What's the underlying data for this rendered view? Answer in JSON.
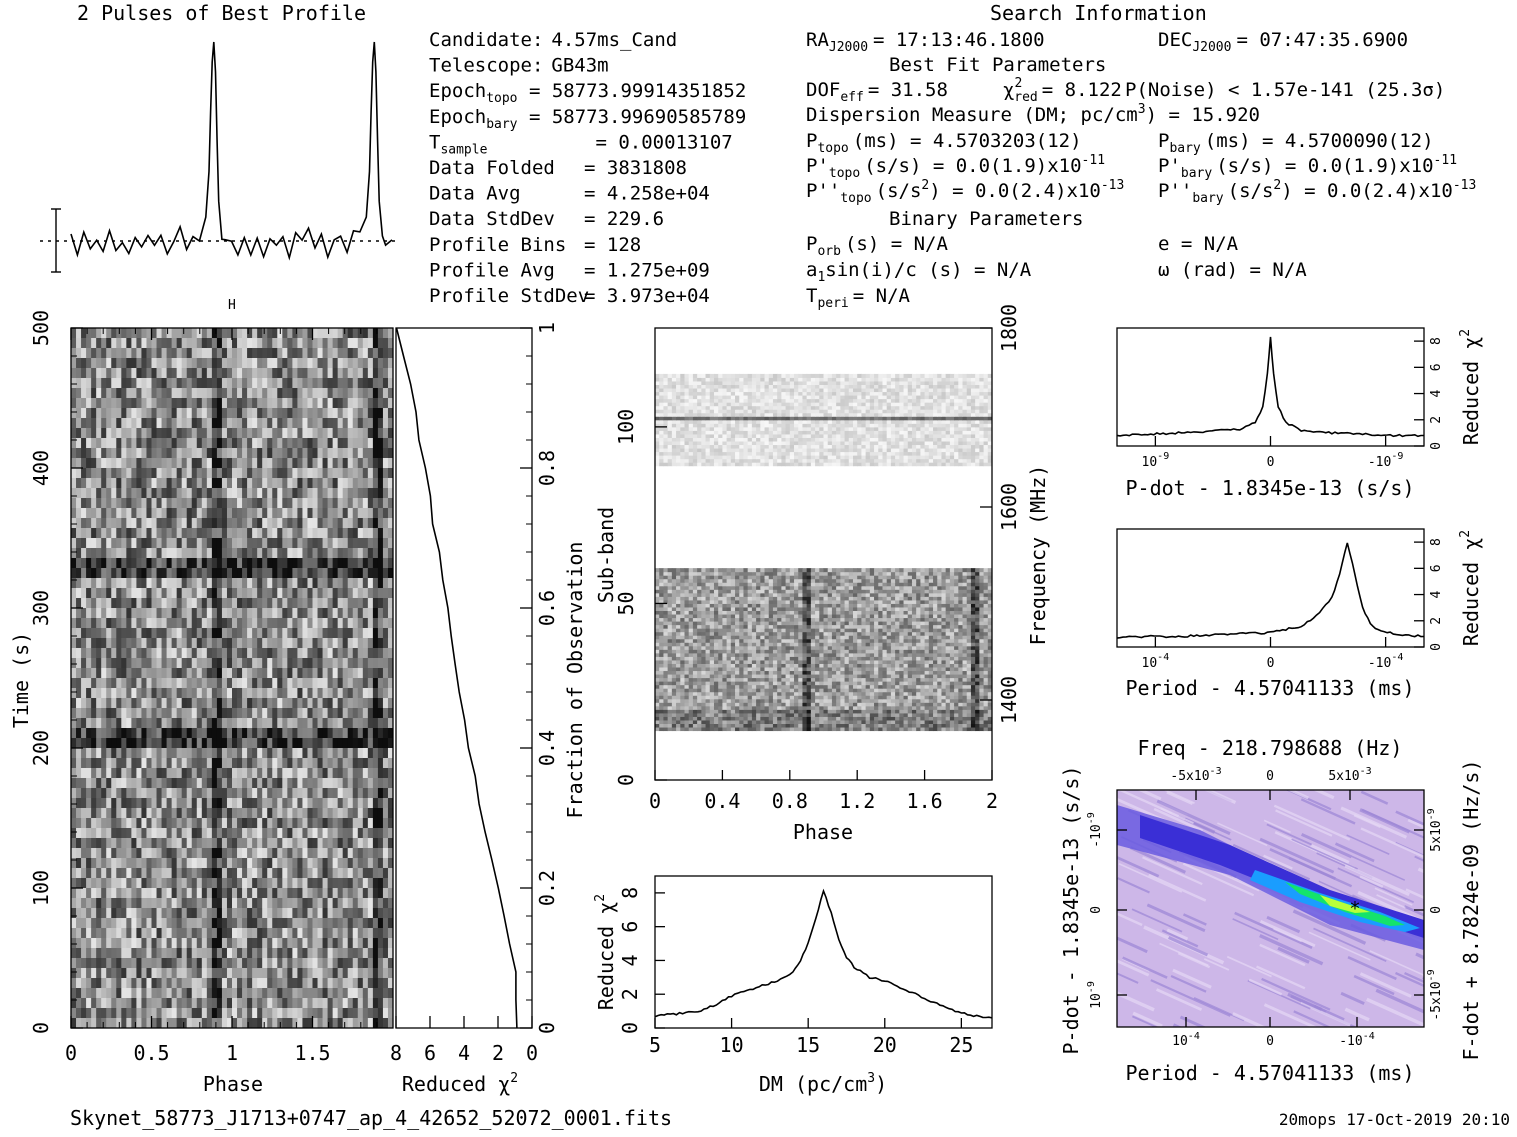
{
  "header": {
    "profile_title": "2 Pulses of Best Profile",
    "search_title": "Search Information"
  },
  "info_col1": [
    {
      "label": "Candidate:",
      "value": "4.57ms_Cand"
    },
    {
      "label": "Telescope:",
      "value": "GB43m"
    },
    {
      "label": "Epoch",
      "sub": "topo",
      "value": "= 58773.99914351852"
    },
    {
      "label": "Epoch",
      "sub": "bary",
      "value": "= 58773.99690585789"
    },
    {
      "label": "T",
      "sub": "sample",
      "value": "=   0.00013107"
    },
    {
      "label": "Data Folded",
      "value": "=   3831808"
    },
    {
      "label": "Data Avg",
      "value": "=   4.258e+04"
    },
    {
      "label": "Data StdDev",
      "value": "=   229.6"
    },
    {
      "label": "Profile Bins",
      "value": "=   128"
    },
    {
      "label": "Profile Avg",
      "value": "=   1.275e+09"
    },
    {
      "label": "Profile StdDev",
      "value": "=   3.973e+04"
    }
  ],
  "info_col2": {
    "ra_label": "RA",
    "ra_sub": "J2000",
    "ra_value": "= 17:13:46.1800",
    "dec_label": "DEC",
    "dec_sub": "J2000",
    "dec_value": "= 07:47:35.6900",
    "best_fit_title": "Best Fit Parameters",
    "dof_label": "DOF",
    "dof_sub": "eff",
    "dof_value": "= 31.58",
    "chi_label": "χ",
    "chi_sup": "2",
    "chi_sub": "red",
    "chi_value": "= 8.122",
    "pnoise": "P(Noise) < 1.57e-141  (25.3σ)",
    "dm_line": "Dispersion Measure (DM; pc/cm",
    "dm_sup": "3",
    "dm_value": ") = 15.920",
    "ptopo_label": "P",
    "ptopo_sub": "topo",
    "ptopo_value": "(ms) =  4.5703203(12)",
    "pbary_label": "P",
    "pbary_sub": "bary",
    "pbary_value": "(ms) =  4.5700090(12)",
    "pdtopo_label": "P'",
    "pdtopo_sub": "topo",
    "pdtopo_value": "(s/s) = 0.0(1.9)x10",
    "pdtopo_exp": "-11",
    "pdbary_label": "P'",
    "pdbary_sub": "bary",
    "pdbary_value": "(s/s) = 0.0(1.9)x10",
    "pdbary_exp": "-11",
    "pddtopo_label": "P''",
    "pddtopo_sub": "topo",
    "pddtopo_value": "(s/s",
    "pddtopo_value2": ") = 0.0(2.4)x10",
    "pddtopo_exp": "-13",
    "pddbary_label": "P''",
    "pddbary_sub": "bary",
    "pddbary_value": "(s/s",
    "pddbary_value2": ") = 0.0(2.4)x10",
    "pddbary_exp": "-13",
    "sq_sup": "2",
    "binary_title": "Binary Parameters",
    "porb_label": "P",
    "porb_sub": "orb",
    "porb_value": "(s) = N/A",
    "e_value": "e = N/A",
    "a1_label": "a",
    "a1_sub": "1",
    "a1_value": "sin(i)/c (s) = N/A",
    "omega_value": "ω (rad) = N/A",
    "tperi_label": "T",
    "tperi_sub": "peri",
    "tperi_value": "= N/A"
  },
  "footer": {
    "filename": "Skynet_58773_J1713+0747_ap_4_42652_52072_0001.fits",
    "stamp": "20mops 17-Oct-2019 20:10"
  },
  "chart_data": [
    {
      "type": "line",
      "name": "profile",
      "title": "2 Pulses of Best Profile",
      "x": [
        0.0,
        0.04,
        0.08,
        0.12,
        0.16,
        0.2,
        0.24,
        0.28,
        0.32,
        0.36,
        0.4,
        0.44,
        0.48,
        0.52,
        0.56,
        0.6,
        0.64,
        0.68,
        0.72,
        0.76,
        0.8,
        0.84,
        0.86,
        0.87,
        0.88,
        0.89,
        0.9,
        0.91,
        0.92,
        0.94,
        0.96,
        1.0,
        1.04,
        1.08,
        1.12,
        1.16,
        1.2,
        1.24,
        1.28,
        1.32,
        1.36,
        1.4,
        1.44,
        1.48,
        1.52,
        1.56,
        1.6,
        1.64,
        1.68,
        1.72,
        1.76,
        1.8,
        1.84,
        1.86,
        1.87,
        1.88,
        1.89,
        1.9,
        1.91,
        1.92,
        1.94,
        1.96,
        2.0
      ],
      "y": [
        0.0,
        -0.4,
        0.3,
        -0.6,
        0.2,
        -0.5,
        0.4,
        -0.3,
        0.1,
        -0.6,
        0.3,
        -0.2,
        0.5,
        -0.4,
        0.2,
        -0.5,
        0.1,
        0.4,
        -0.3,
        0.2,
        0.3,
        1.2,
        3.5,
        6.5,
        9.0,
        10.0,
        8.5,
        5.0,
        2.0,
        0.3,
        -0.2,
        0.0,
        -0.4,
        0.3,
        -0.6,
        0.2,
        -0.5,
        0.4,
        -0.3,
        0.1,
        -0.6,
        0.3,
        -0.2,
        0.5,
        -0.4,
        0.2,
        -0.5,
        0.1,
        0.4,
        -0.3,
        0.2,
        0.3,
        1.2,
        3.5,
        6.5,
        9.0,
        10.0,
        8.5,
        5.0,
        2.0,
        0.3,
        -0.2,
        0.0
      ]
    },
    {
      "type": "heatmap",
      "name": "time-phase",
      "xlabel": "Phase",
      "ylabel": "Time (s)",
      "xlim": [
        0,
        2
      ],
      "ylim": [
        0,
        500
      ],
      "xticks": [
        "0",
        "0.5",
        "1",
        "1.5"
      ],
      "yticks": [
        "0",
        "100",
        "200",
        "300",
        "400",
        "500"
      ],
      "pulse_phases": [
        0.9,
        1.9
      ],
      "dark_rows_s": [
        330,
        205,
        505
      ]
    },
    {
      "type": "line",
      "name": "time-chi2",
      "xlabel": "Reduced χ",
      "xlabel_sup": "2",
      "xlim": [
        8,
        0
      ],
      "ylim": [
        0,
        1
      ],
      "xticks": [
        "8",
        "6",
        "4",
        "2",
        "0"
      ],
      "yticks": [
        "0",
        "0.2",
        "0.4",
        "0.6",
        "0.8",
        "1"
      ],
      "ylabel_right": "Fraction of Observation",
      "frac": [
        0.0,
        0.04,
        0.08,
        0.12,
        0.16,
        0.2,
        0.24,
        0.28,
        0.32,
        0.36,
        0.4,
        0.44,
        0.48,
        0.52,
        0.56,
        0.6,
        0.64,
        0.68,
        0.72,
        0.76,
        0.8,
        0.84,
        0.88,
        0.92,
        0.96,
        1.0
      ],
      "chi2": [
        0.9,
        0.9,
        1.0,
        1.3,
        1.6,
        2.0,
        2.3,
        2.7,
        3.1,
        3.4,
        3.7,
        4.0,
        4.3,
        4.5,
        4.8,
        5.0,
        5.3,
        5.5,
        5.8,
        6.0,
        6.3,
        6.6,
        6.8,
        7.2,
        7.6,
        8.0
      ]
    },
    {
      "type": "heatmap",
      "name": "subband-phase",
      "xlabel": "Phase",
      "ylabel": "Sub-band",
      "ylabel_right": "Frequency (MHz)",
      "xlim": [
        0,
        2
      ],
      "ylim": [
        0,
        128
      ],
      "xticks": [
        "0",
        "0.4",
        "0.8",
        "1.2",
        "1.6",
        "2"
      ],
      "yticks": [
        "0",
        "50",
        "100"
      ],
      "freq_ticks": [
        "1400",
        "1600",
        "1800"
      ],
      "empty_band": [
        60,
        89
      ],
      "top_band_end": 115,
      "bottom_band_start": 14,
      "pulse_phases": [
        0.9,
        1.9
      ]
    },
    {
      "type": "line",
      "name": "dm-chi2",
      "xlabel": "DM (pc/cm",
      "xlabel_sup": "3",
      "xlabel_end": ")",
      "ylabel": "Reduced χ",
      "ylabel_sup": "2",
      "xlim": [
        5,
        27
      ],
      "ylim": [
        0,
        9
      ],
      "xticks": [
        "5",
        "10",
        "15",
        "20",
        "25"
      ],
      "yticks": [
        "0",
        "2",
        "4",
        "6",
        "8"
      ],
      "x": [
        5,
        6,
        7,
        8,
        9,
        10,
        11,
        12,
        13,
        14,
        14.5,
        15,
        15.5,
        16,
        16.5,
        17,
        17.5,
        18,
        19,
        20,
        21,
        22,
        23,
        24,
        25,
        26,
        27
      ],
      "y": [
        0.7,
        0.8,
        0.9,
        1.0,
        1.4,
        1.9,
        2.2,
        2.5,
        2.8,
        3.3,
        4.0,
        5.0,
        6.5,
        8.1,
        6.8,
        5.2,
        4.2,
        3.6,
        3.0,
        2.8,
        2.4,
        2.0,
        1.6,
        1.2,
        0.9,
        0.7,
        0.6
      ]
    },
    {
      "type": "line",
      "name": "pdot-chi2",
      "xlabel": "P-dot - 1.8345e-13 (s/s)",
      "ylabel_right": "Reduced χ",
      "ylabel_sup": "2",
      "xlim": [
        -1,
        1
      ],
      "ylim": [
        0,
        9
      ],
      "xticks": [
        "10",
        "0",
        "-10"
      ],
      "xtick_exp": "-9",
      "yticks": [
        "0",
        "2",
        "4",
        "6",
        "8"
      ],
      "x": [
        -1,
        -0.8,
        -0.6,
        -0.4,
        -0.2,
        -0.1,
        -0.05,
        -0.02,
        0,
        0.02,
        0.05,
        0.1,
        0.2,
        0.4,
        0.6,
        0.8,
        1
      ],
      "y": [
        0.8,
        0.9,
        1.0,
        1.1,
        1.3,
        1.8,
        3.0,
        5.5,
        8.3,
        5.5,
        3.0,
        1.8,
        1.2,
        1.0,
        0.9,
        0.8,
        0.8
      ]
    },
    {
      "type": "line",
      "name": "period-chi2",
      "xlabel": "Period - 4.57041133 (ms)",
      "ylabel_right": "Reduced χ",
      "ylabel_sup": "2",
      "xlim": [
        -1,
        1
      ],
      "ylim": [
        0,
        9
      ],
      "xticks": [
        "10",
        "0",
        "-10"
      ],
      "xtick_exp": "-4",
      "yticks": [
        "0",
        "2",
        "4",
        "6",
        "8"
      ],
      "x": [
        -1,
        -0.8,
        -0.6,
        -0.4,
        -0.2,
        0,
        0.2,
        0.3,
        0.4,
        0.45,
        0.5,
        0.55,
        0.6,
        0.65,
        0.7,
        0.8,
        0.9,
        1
      ],
      "y": [
        0.7,
        0.8,
        0.8,
        0.9,
        1.0,
        1.1,
        1.6,
        2.4,
        3.8,
        5.5,
        8.0,
        5.5,
        3.0,
        1.8,
        1.3,
        1.0,
        0.9,
        0.8
      ]
    },
    {
      "type": "heatmap",
      "name": "ppdot-plane",
      "title": "Freq - 218.798688 (Hz)",
      "xlabel": "Period - 4.57041133 (ms)",
      "ylabel": "P-dot - 1.8345e-13 (s/s)",
      "ylabel_right": "F-dot + 8.7824e-09 (Hz/s)",
      "top_ticks": [
        "-5x10",
        "0",
        "5x10"
      ],
      "top_exp": "-3",
      "bottom_ticks": [
        "10",
        "0",
        "-10"
      ],
      "bottom_exp": "-4",
      "left_ticks": [
        "-10",
        "0",
        "10"
      ],
      "left_exp": "-9",
      "right_ticks": [
        "5x10",
        "0",
        "-5x10"
      ],
      "right_exp": "-9",
      "colors": {
        "base": "#c9b3e6",
        "band": "#3a2fd6",
        "peak": "#14e36b"
      }
    }
  ]
}
